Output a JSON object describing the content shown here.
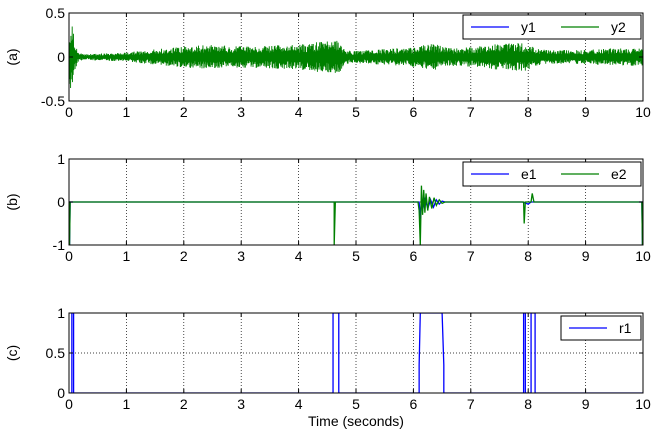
{
  "chart_data": [
    {
      "type": "line",
      "ylabel": "(a)",
      "xlim": [
        0,
        10
      ],
      "ylim": [
        -0.5,
        0.5
      ],
      "xticks": [
        "0",
        "1",
        "2",
        "3",
        "4",
        "5",
        "6",
        "7",
        "8",
        "9",
        "10"
      ],
      "yticks": [
        "-0.5",
        "0",
        "0.5"
      ],
      "grid": true,
      "legend_position": "top-right",
      "series": [
        {
          "name": "y1",
          "color": "#0000ff",
          "description": "oscillating signal centered at 0, largely hidden under y2",
          "x": [
            0,
            10
          ],
          "y": [
            0,
            0
          ]
        },
        {
          "name": "y2",
          "color": "#008000",
          "description": "dense oscillation around 0; amplitude envelope",
          "envelope": {
            "t": [
              0,
              0.05,
              0.1,
              0.15,
              0.25,
              0.5,
              1.0,
              1.5,
              1.7,
              2.0,
              2.5,
              3.0,
              3.5,
              4.0,
              4.3,
              4.6,
              4.7,
              4.8,
              5.0,
              5.5,
              6.0,
              6.2,
              6.4,
              6.6,
              7.0,
              7.5,
              7.9,
              8.0,
              8.2,
              8.5,
              9.0,
              9.5,
              10.0
            ],
            "amp": [
              0.4,
              0.4,
              0.18,
              0.06,
              0.03,
              0.04,
              0.05,
              0.09,
              0.1,
              0.12,
              0.14,
              0.12,
              0.13,
              0.14,
              0.17,
              0.18,
              0.2,
              0.08,
              0.07,
              0.09,
              0.11,
              0.14,
              0.15,
              0.1,
              0.11,
              0.15,
              0.16,
              0.15,
              0.09,
              0.08,
              0.08,
              0.1,
              0.1
            ]
          }
        }
      ]
    },
    {
      "type": "line",
      "ylabel": "(b)",
      "xlim": [
        0,
        10
      ],
      "ylim": [
        -1,
        1
      ],
      "xticks": [
        "0",
        "1",
        "2",
        "3",
        "4",
        "5",
        "6",
        "7",
        "8",
        "9",
        "10"
      ],
      "yticks": [
        "-1",
        "0",
        "1"
      ],
      "grid": true,
      "legend_position": "top-right",
      "series": [
        {
          "name": "e1",
          "color": "#0000ff",
          "x": [
            0,
            0.01,
            0.02,
            4.62,
            4.62,
            4.64,
            6.1,
            6.12,
            6.14,
            6.16,
            6.2,
            6.25,
            6.3,
            6.35,
            6.4,
            6.45,
            6.5,
            6.55,
            7.9,
            8.0,
            8.05,
            8.1,
            9.98,
            9.99,
            10.0
          ],
          "y": [
            -1,
            -1,
            0,
            0,
            -0.05,
            0,
            0,
            -0.4,
            0.1,
            -0.2,
            0.1,
            -0.15,
            0.05,
            -0.12,
            0.05,
            -0.05,
            0.02,
            0,
            0,
            -0.05,
            0,
            0,
            0,
            -1,
            -1
          ]
        },
        {
          "name": "e2",
          "color": "#008000",
          "x": [
            0,
            0.01,
            0.02,
            4.62,
            4.62,
            4.64,
            6.08,
            6.1,
            6.12,
            6.14,
            6.16,
            6.18,
            6.2,
            6.22,
            6.25,
            6.28,
            6.32,
            6.36,
            6.4,
            6.45,
            6.5,
            6.55,
            7.92,
            7.93,
            7.95,
            8.05,
            8.07,
            8.1,
            9.98,
            9.99,
            10.0
          ],
          "y": [
            -1,
            -1,
            0,
            0,
            -1,
            0,
            0,
            -0.2,
            -1,
            0.38,
            -0.3,
            0.28,
            -0.25,
            0.2,
            -0.2,
            0.12,
            -0.15,
            0.1,
            -0.08,
            0.05,
            -0.03,
            0,
            0,
            -0.5,
            0,
            0,
            0.2,
            0,
            0,
            -1,
            -1
          ]
        }
      ]
    },
    {
      "type": "line",
      "ylabel": "(c)",
      "xlabel": "Time (seconds)",
      "xlim": [
        0,
        10
      ],
      "ylim": [
        0,
        1
      ],
      "xticks": [
        "0",
        "1",
        "2",
        "3",
        "4",
        "5",
        "6",
        "7",
        "8",
        "9",
        "10"
      ],
      "yticks": [
        "0",
        "0.5",
        "1"
      ],
      "grid": true,
      "legend_position": "top-right",
      "series": [
        {
          "name": "r1",
          "color": "#0000ff",
          "x": [
            0,
            0.05,
            0.05,
            0.08,
            0.08,
            4.6,
            4.6,
            4.7,
            4.7,
            6.1,
            6.1,
            6.12,
            6.15,
            6.5,
            6.53,
            6.53,
            7.92,
            7.92,
            7.95,
            7.95,
            8.05,
            8.05,
            8.12,
            8.12,
            10.0
          ],
          "y": [
            0,
            0,
            1,
            1,
            0,
            0,
            1,
            1,
            0,
            0,
            0.35,
            1,
            1,
            1,
            0.35,
            0,
            0,
            1,
            1,
            0,
            0,
            1,
            1,
            0,
            0
          ]
        }
      ]
    }
  ]
}
